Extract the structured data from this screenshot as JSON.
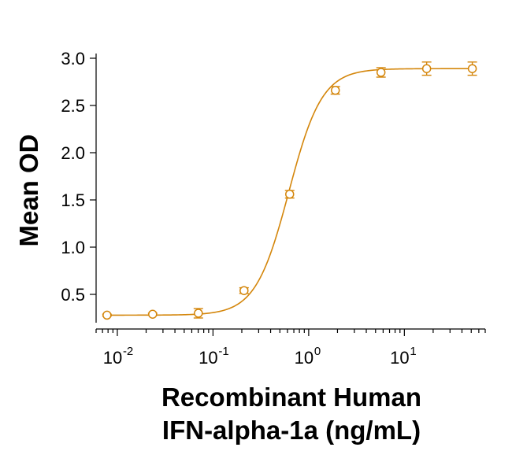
{
  "chart_data": {
    "type": "scatter",
    "xscale": "log",
    "xlim": [
      0.006,
      70
    ],
    "ylim": [
      0.2,
      3.05
    ],
    "ylabel": "Mean OD",
    "xlabel_lines": [
      "Recombinant Human",
      "IFN-alpha-1a (ng/mL)"
    ],
    "yticks": [
      {
        "value": 0.5,
        "label": "0.5"
      },
      {
        "value": 1.0,
        "label": "1.0"
      },
      {
        "value": 1.5,
        "label": "1.5"
      },
      {
        "value": 2.0,
        "label": "2.0"
      },
      {
        "value": 2.5,
        "label": "2.5"
      },
      {
        "value": 3.0,
        "label": "3.0"
      }
    ],
    "xticks_major": [
      {
        "value": 0.01,
        "base": "10",
        "exp": "-2"
      },
      {
        "value": 0.1,
        "base": "10",
        "exp": "-1"
      },
      {
        "value": 1,
        "base": "10",
        "exp": "0"
      },
      {
        "value": 10,
        "base": "10",
        "exp": "1"
      }
    ],
    "color": "#D4860B",
    "series": [
      {
        "points": [
          {
            "x": 0.0078,
            "y": 0.28,
            "err": 0.01
          },
          {
            "x": 0.0234,
            "y": 0.29,
            "err": 0.01
          },
          {
            "x": 0.0703,
            "y": 0.3,
            "err": 0.05
          },
          {
            "x": 0.211,
            "y": 0.54,
            "err": 0.03
          },
          {
            "x": 0.633,
            "y": 1.56,
            "err": 0.04
          },
          {
            "x": 1.9,
            "y": 2.66,
            "err": 0.04
          },
          {
            "x": 5.7,
            "y": 2.85,
            "err": 0.05
          },
          {
            "x": 17.1,
            "y": 2.89,
            "err": 0.07
          },
          {
            "x": 51.3,
            "y": 2.89,
            "err": 0.07
          }
        ],
        "fit": {
          "bottom": 0.28,
          "top": 2.89,
          "ec50": 0.62,
          "hill": 2.5
        }
      }
    ]
  }
}
